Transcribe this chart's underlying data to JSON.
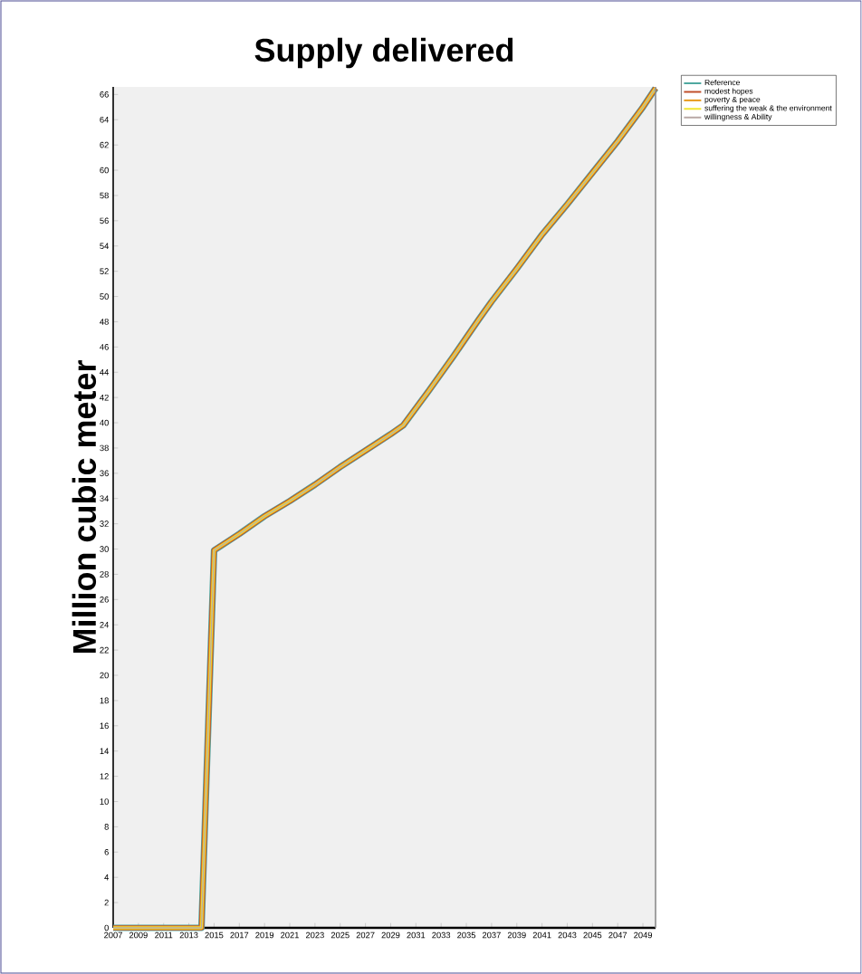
{
  "chart_data": {
    "type": "line",
    "title": "Supply delivered",
    "ylabel": "Million cubic meter",
    "x": [
      2007,
      2008,
      2009,
      2010,
      2011,
      2012,
      2013,
      2014,
      2015,
      2017,
      2019,
      2021,
      2023,
      2025,
      2027,
      2029,
      2030,
      2032,
      2034,
      2036,
      2037,
      2039,
      2041,
      2043,
      2045,
      2047,
      2049,
      2050
    ],
    "series": [
      {
        "name": "Reference",
        "color": "#4fa8a0",
        "values": [
          0,
          0,
          0,
          0,
          0,
          0,
          0,
          0,
          29.9,
          31.2,
          32.6,
          33.8,
          35.1,
          36.5,
          37.8,
          39.1,
          39.8,
          42.5,
          45.3,
          48.2,
          49.6,
          52.2,
          54.9,
          57.3,
          59.8,
          62.3,
          65.0,
          66.5
        ]
      },
      {
        "name": "modest hopes",
        "color": "#c0502c",
        "values": [
          0,
          0,
          0,
          0,
          0,
          0,
          0,
          0,
          29.9,
          31.2,
          32.6,
          33.8,
          35.1,
          36.5,
          37.8,
          39.1,
          39.8,
          42.5,
          45.3,
          48.2,
          49.6,
          52.2,
          54.9,
          57.3,
          59.8,
          62.3,
          65.0,
          66.5
        ]
      },
      {
        "name": "poverty & peace",
        "color": "#e89a1c",
        "values": [
          0,
          0,
          0,
          0,
          0,
          0,
          0,
          0,
          29.9,
          31.2,
          32.6,
          33.8,
          35.1,
          36.5,
          37.8,
          39.1,
          39.8,
          42.5,
          45.3,
          48.2,
          49.6,
          52.2,
          54.9,
          57.3,
          59.8,
          62.3,
          65.0,
          66.5
        ]
      },
      {
        "name": "suffering the weak & the environment",
        "color": "#f2e630",
        "values": [
          0,
          0,
          0,
          0,
          0,
          0,
          0,
          0,
          29.9,
          31.2,
          32.6,
          33.8,
          35.1,
          36.5,
          37.8,
          39.1,
          39.8,
          42.5,
          45.3,
          48.2,
          49.6,
          52.2,
          54.9,
          57.3,
          59.8,
          62.3,
          65.0,
          66.5
        ]
      },
      {
        "name": "willingness & Ability",
        "color": "#b9a9a6",
        "values": [
          0,
          0,
          0,
          0,
          0,
          0,
          0,
          0,
          29.9,
          31.2,
          32.6,
          33.8,
          35.1,
          36.5,
          37.8,
          39.1,
          39.8,
          42.5,
          45.3,
          48.2,
          49.6,
          52.2,
          54.9,
          57.3,
          59.8,
          62.3,
          65.0,
          66.5
        ]
      }
    ],
    "xlim": [
      2007,
      2050
    ],
    "ylim": [
      0,
      66.6
    ],
    "xticks": [
      2007,
      2009,
      2011,
      2013,
      2015,
      2017,
      2019,
      2021,
      2023,
      2025,
      2027,
      2029,
      2031,
      2033,
      2035,
      2037,
      2039,
      2041,
      2043,
      2045,
      2047,
      2049
    ],
    "yticks": [
      0,
      2,
      4,
      6,
      8,
      10,
      12,
      14,
      16,
      18,
      20,
      22,
      24,
      26,
      28,
      30,
      32,
      34,
      36,
      38,
      40,
      42,
      44,
      46,
      48,
      50,
      52,
      54,
      56,
      58,
      60,
      62,
      64,
      66
    ],
    "legend": "top right",
    "marker": "none",
    "line_style": "solid"
  }
}
